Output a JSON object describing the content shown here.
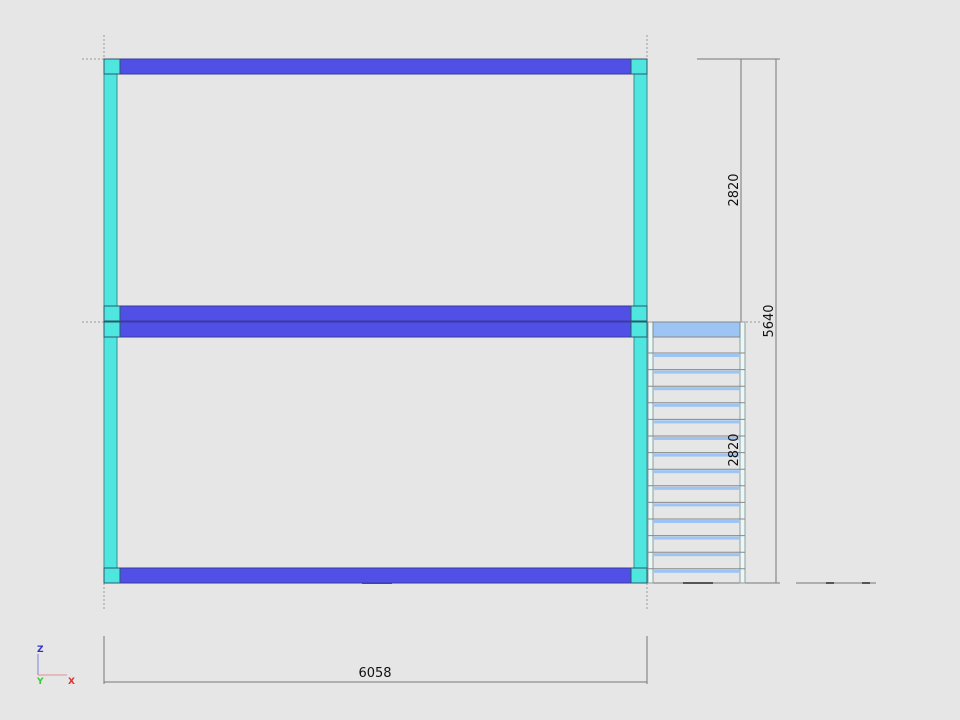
{
  "view": {
    "dimensions": {
      "upper_storey_height": "2820",
      "lower_storey_height": "2820",
      "total_height": "5640",
      "frame_width": "6058"
    },
    "axis_triad": {
      "z": "Z",
      "y": "Y",
      "x": "X"
    },
    "colors": {
      "background": "#e6e6e6",
      "beam": "#5050e6",
      "column": "#50e6e0",
      "stair_tread": "#9cc4f4",
      "stair_stringer": "#e6fafa",
      "axis_x": "#e03030",
      "axis_y": "#30d030",
      "axis_z": "#3030d0"
    }
  }
}
